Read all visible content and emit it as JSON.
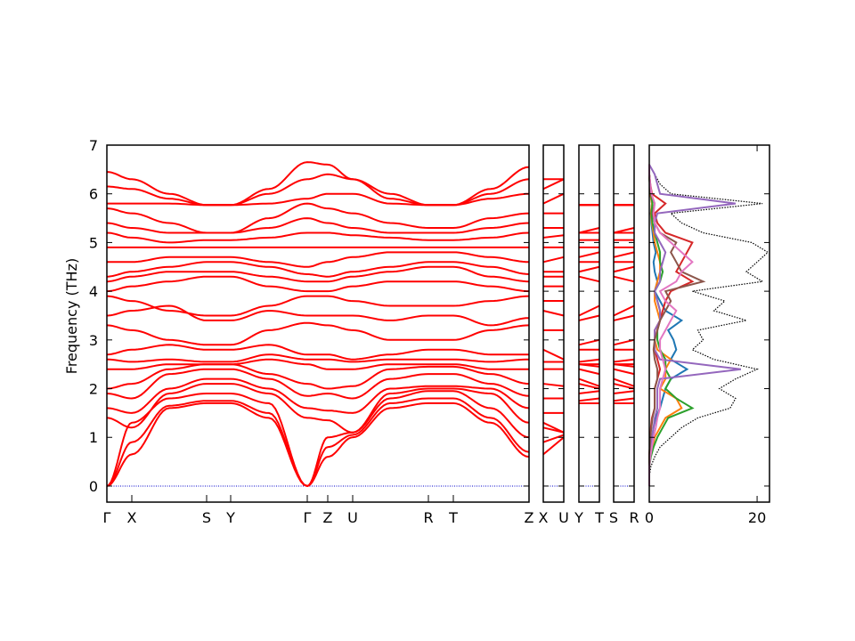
{
  "chart_data": {
    "type": "line",
    "ylabel": "Frequency (THz)",
    "ylim": [
      -0.33,
      7
    ],
    "yticks": [
      "0",
      "1",
      "2",
      "3",
      "4",
      "5",
      "6",
      "7"
    ],
    "band_color": "#ff0000",
    "zero_line_color": "#0000cc",
    "kpath_labels": [
      "Γ",
      "X",
      "S",
      "Y",
      "Γ",
      "Z",
      "U",
      "R",
      "T",
      "Z"
    ],
    "break_panels": [
      {
        "labels": [
          "X",
          "U"
        ]
      },
      {
        "labels": [
          "Y",
          "T"
        ]
      },
      {
        "labels": [
          "S",
          "R"
        ]
      }
    ],
    "band_sample_points": [
      "Γ",
      "X",
      "X-S mid",
      "S",
      "Y",
      "Y-Γ mid",
      "Γ",
      "Z",
      "U",
      "U-R mid",
      "R",
      "T",
      "T-Z mid",
      "Z"
    ],
    "bands": [
      [
        0,
        0.65,
        1.6,
        1.7,
        1.7,
        1.4,
        0,
        0.6,
        1.0,
        1.6,
        1.7,
        1.7,
        1.3,
        0.6
      ],
      [
        0,
        0.9,
        1.65,
        1.75,
        1.75,
        1.5,
        0,
        0.8,
        1.05,
        1.7,
        1.8,
        1.8,
        1.4,
        0.7
      ],
      [
        0,
        1.3,
        1.8,
        1.9,
        1.9,
        1.7,
        0,
        1.0,
        1.1,
        1.8,
        1.95,
        1.95,
        1.6,
        1.0
      ],
      [
        1.4,
        1.2,
        1.9,
        2.1,
        2.1,
        1.9,
        1.4,
        1.35,
        1.1,
        1.9,
        2.0,
        2.0,
        1.9,
        1.3
      ],
      [
        1.6,
        1.5,
        2.0,
        2.2,
        2.2,
        2.0,
        1.6,
        1.55,
        1.5,
        2.0,
        2.05,
        2.05,
        2.0,
        1.6
      ],
      [
        1.9,
        1.8,
        2.3,
        2.4,
        2.4,
        2.2,
        1.85,
        1.9,
        1.8,
        2.2,
        2.3,
        2.3,
        2.1,
        1.85
      ],
      [
        2.0,
        2.1,
        2.4,
        2.5,
        2.5,
        2.3,
        2.1,
        2.0,
        2.05,
        2.4,
        2.45,
        2.45,
        2.3,
        2.1
      ],
      [
        2.4,
        2.4,
        2.5,
        2.5,
        2.5,
        2.6,
        2.5,
        2.4,
        2.4,
        2.5,
        2.5,
        2.5,
        2.4,
        2.4
      ],
      [
        2.6,
        2.55,
        2.6,
        2.55,
        2.55,
        2.7,
        2.6,
        2.6,
        2.55,
        2.6,
        2.6,
        2.6,
        2.55,
        2.6
      ],
      [
        2.7,
        2.8,
        2.9,
        2.8,
        2.8,
        2.9,
        2.7,
        2.7,
        2.6,
        2.7,
        2.8,
        2.8,
        2.7,
        2.7
      ],
      [
        3.3,
        3.2,
        3.0,
        2.9,
        2.9,
        3.2,
        3.35,
        3.3,
        3.2,
        3.0,
        3.0,
        3.0,
        3.2,
        3.3
      ],
      [
        3.5,
        3.6,
        3.7,
        3.4,
        3.4,
        3.6,
        3.5,
        3.5,
        3.5,
        3.4,
        3.5,
        3.5,
        3.3,
        3.45
      ],
      [
        3.9,
        3.8,
        3.6,
        3.5,
        3.5,
        3.7,
        3.9,
        3.9,
        3.8,
        3.7,
        3.7,
        3.7,
        3.8,
        3.9
      ],
      [
        4.0,
        4.1,
        4.2,
        4.3,
        4.3,
        4.1,
        4.0,
        4.0,
        4.1,
        4.2,
        4.2,
        4.2,
        4.1,
        4.0
      ],
      [
        4.2,
        4.3,
        4.4,
        4.4,
        4.4,
        4.3,
        4.2,
        4.2,
        4.3,
        4.4,
        4.5,
        4.5,
        4.3,
        4.2
      ],
      [
        4.3,
        4.4,
        4.5,
        4.6,
        4.6,
        4.5,
        4.35,
        4.3,
        4.4,
        4.5,
        4.6,
        4.6,
        4.5,
        4.35
      ],
      [
        4.6,
        4.6,
        4.7,
        4.7,
        4.7,
        4.6,
        4.5,
        4.6,
        4.7,
        4.8,
        4.8,
        4.8,
        4.7,
        4.6
      ],
      [
        4.9,
        4.9,
        4.9,
        4.9,
        4.9,
        4.9,
        4.9,
        4.9,
        4.9,
        4.9,
        4.9,
        4.9,
        4.9,
        4.9
      ],
      [
        5.2,
        5.1,
        5.0,
        5.05,
        5.05,
        5.1,
        5.2,
        5.2,
        5.15,
        5.1,
        5.05,
        5.05,
        5.1,
        5.2
      ],
      [
        5.4,
        5.3,
        5.2,
        5.2,
        5.2,
        5.3,
        5.5,
        5.4,
        5.3,
        5.2,
        5.2,
        5.2,
        5.3,
        5.4
      ],
      [
        5.7,
        5.6,
        5.4,
        5.2,
        5.2,
        5.5,
        5.8,
        5.7,
        5.6,
        5.4,
        5.3,
        5.3,
        5.5,
        5.6
      ],
      [
        5.8,
        5.8,
        5.8,
        5.77,
        5.77,
        5.8,
        5.9,
        6.0,
        6.0,
        5.8,
        5.77,
        5.77,
        5.9,
        6.0
      ],
      [
        6.15,
        6.1,
        5.9,
        5.77,
        5.77,
        6.0,
        6.3,
        6.4,
        6.3,
        5.9,
        5.77,
        5.77,
        6.0,
        6.3
      ],
      [
        6.45,
        6.3,
        6.0,
        5.77,
        5.77,
        6.1,
        6.65,
        6.6,
        6.3,
        6.0,
        5.77,
        5.77,
        6.1,
        6.55
      ]
    ],
    "dos": {
      "xlim": [
        0,
        22.3
      ],
      "xticks": [
        "0",
        "20"
      ],
      "frequency": [
        0,
        0.2,
        0.4,
        0.6,
        0.8,
        1.0,
        1.2,
        1.4,
        1.6,
        1.8,
        2.0,
        2.2,
        2.4,
        2.6,
        2.8,
        3.0,
        3.2,
        3.4,
        3.6,
        3.8,
        4.0,
        4.2,
        4.4,
        4.6,
        4.8,
        5.0,
        5.2,
        5.4,
        5.6,
        5.8,
        6.0,
        6.2,
        6.4,
        6.6
      ],
      "total": {
        "color": "#000000",
        "style": "dotted",
        "values": [
          0,
          0,
          0.3,
          1,
          2,
          4,
          6,
          9,
          15,
          16,
          13,
          16,
          20,
          12,
          8,
          10,
          9,
          18,
          12,
          14,
          8,
          21,
          18,
          20,
          22,
          19,
          10,
          6,
          4,
          21,
          4,
          2,
          1,
          0
        ]
      },
      "projected": [
        {
          "color": "#1f77b4",
          "values": [
            0,
            0,
            0,
            0.1,
            0.3,
            0.5,
            0.8,
            1.2,
            2,
            2.5,
            3,
            4,
            7,
            4,
            5,
            4.5,
            3.5,
            6,
            3,
            2,
            1,
            1.5,
            1,
            0.8,
            1.2,
            0.8,
            0.6,
            0.4,
            0.3,
            0.5,
            0.2,
            0.1,
            0,
            0
          ]
        },
        {
          "color": "#ff7f0e",
          "values": [
            0,
            0,
            0,
            0.2,
            0.6,
            1,
            2,
            3,
            6,
            5,
            2,
            3,
            3,
            4,
            1.5,
            1,
            1,
            2,
            1.5,
            1,
            1,
            1.5,
            2,
            2,
            1.5,
            1,
            0.8,
            0.5,
            0.3,
            0.5,
            0.2,
            0.1,
            0,
            0
          ]
        },
        {
          "color": "#2ca02c",
          "values": [
            0,
            0,
            0,
            0.3,
            0.8,
            1.5,
            2.5,
            3.5,
            8,
            5,
            3,
            4,
            3,
            3,
            2,
            1.5,
            1.5,
            2,
            2,
            1.5,
            1,
            2,
            2.5,
            2,
            2,
            1.5,
            1,
            0.6,
            0.4,
            0.6,
            0.3,
            0.1,
            0,
            0
          ]
        },
        {
          "color": "#d62728",
          "values": [
            0,
            0,
            0,
            0,
            0.1,
            0.2,
            0.3,
            0.5,
            1,
            1,
            1,
            1.5,
            2,
            1.5,
            1,
            1,
            1.5,
            2,
            2.5,
            3,
            4,
            8,
            5,
            6,
            7,
            8,
            3,
            1.5,
            1,
            3,
            0.5,
            0.2,
            0,
            0
          ]
        },
        {
          "color": "#9467bd",
          "values": [
            0,
            0,
            0,
            0.1,
            0.3,
            0.5,
            0.8,
            1,
            1.5,
            1.5,
            1.5,
            2,
            17,
            2,
            1,
            1,
            1,
            2,
            2,
            1.5,
            1,
            2,
            2,
            2.5,
            3,
            2,
            1,
            1,
            1.5,
            16,
            2,
            1.5,
            1,
            0
          ]
        },
        {
          "color": "#8c564b",
          "values": [
            0,
            0,
            0,
            0,
            0.1,
            0.2,
            0.4,
            0.6,
            1,
            1,
            1,
            1.5,
            1.5,
            1,
            0.8,
            1,
            1.5,
            2,
            3,
            4,
            3,
            10,
            6,
            5,
            4,
            5,
            2,
            1,
            0.6,
            1,
            0.3,
            0.1,
            0,
            0
          ]
        },
        {
          "color": "#e377c2",
          "values": [
            0,
            0,
            0,
            0.2,
            0.5,
            0.8,
            1.2,
            1.5,
            2,
            2,
            2,
            2.5,
            3,
            2.5,
            2,
            2,
            3,
            4,
            5,
            3,
            2,
            5,
            6,
            8,
            6,
            4,
            2,
            1,
            0.8,
            1,
            0.4,
            0.2,
            0,
            0
          ]
        }
      ]
    }
  }
}
